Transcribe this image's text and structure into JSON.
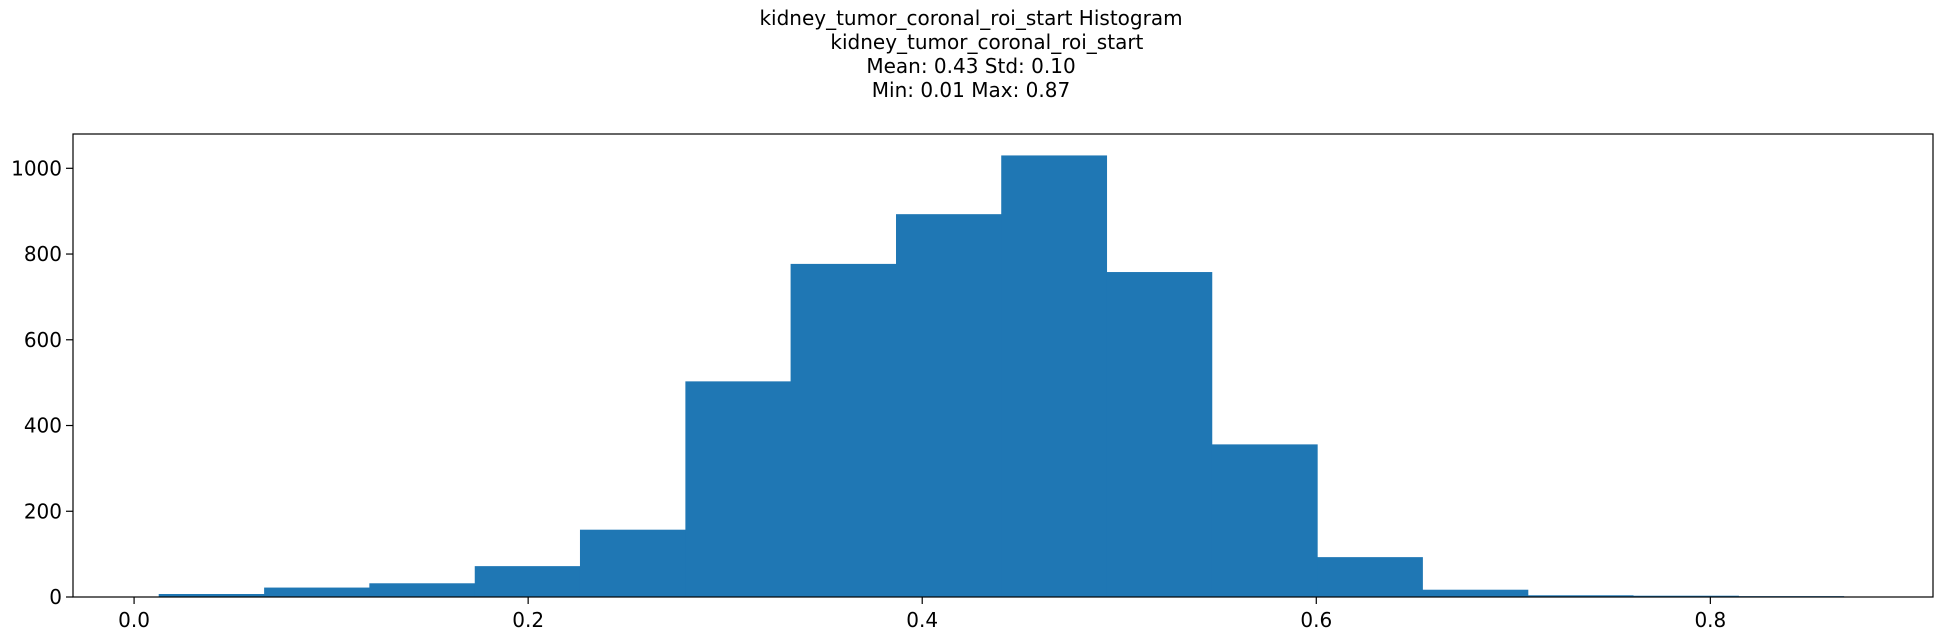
{
  "chart_data": {
    "type": "bar",
    "title_lines": [
      "kidney_tumor_coronal_roi_start Histogram",
      "     kidney_tumor_coronal_roi_start",
      "Mean: 0.43 Std: 0.10",
      "Min: 0.01 Max: 0.87"
    ],
    "xlabel": "",
    "ylabel": "",
    "xlim": [
      -0.031,
      0.913
    ],
    "ylim": [
      0,
      1080
    ],
    "x_ticks": [
      0.0,
      0.2,
      0.4,
      0.6,
      0.8
    ],
    "x_tick_labels": [
      "0.0",
      "0.2",
      "0.4",
      "0.6",
      "0.8"
    ],
    "y_ticks": [
      0,
      200,
      400,
      600,
      800,
      1000
    ],
    "y_tick_labels": [
      "0",
      "200",
      "400",
      "600",
      "800",
      "1000"
    ],
    "bin_edges": [
      0.0125,
      0.066,
      0.1194,
      0.1729,
      0.2263,
      0.2798,
      0.3332,
      0.3867,
      0.4401,
      0.4936,
      0.547,
      0.6005,
      0.6539,
      0.7074,
      0.7608,
      0.8143,
      0.8677
    ],
    "values": [
      7,
      22,
      32,
      72,
      157,
      503,
      777,
      893,
      1030,
      758,
      356,
      93,
      17,
      4,
      3,
      2
    ],
    "bar_color": "#1f77b4",
    "grid": false
  }
}
